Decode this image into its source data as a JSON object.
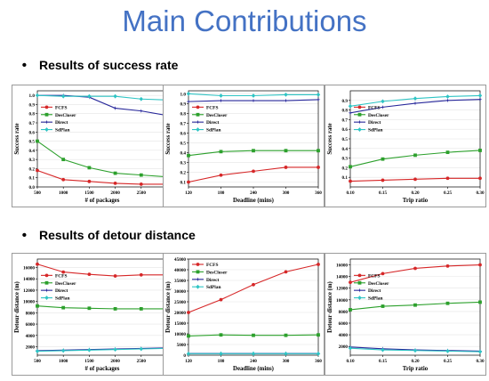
{
  "title": "Main Contributions",
  "sections": [
    {
      "bullet": "•",
      "label": "Results of success rate"
    },
    {
      "bullet": "•",
      "label": "Results of detour distance"
    }
  ],
  "colors": {
    "title": "#4472c4",
    "FCFS": "#d62728",
    "DesCloser": "#2ca02c",
    "Direct": "#27279a",
    "SdPlan": "#2ec4c4"
  },
  "chart_data": [
    {
      "type": "line",
      "xlabel": "# of packages",
      "ylabel": "Success rate",
      "x": [
        500,
        1000,
        1500,
        2000,
        2500,
        3000
      ],
      "xticks": [
        "500",
        "1000",
        "1500",
        "2000",
        "2500",
        "3000"
      ],
      "xlim": [
        500,
        3000
      ],
      "ylim": [
        0,
        1.05
      ],
      "yticks": [
        0.0,
        0.1,
        0.2,
        0.3,
        0.4,
        0.5,
        0.6,
        0.7,
        0.8,
        0.9,
        1.0
      ],
      "ytick_labels": [
        "0.0",
        "0.1",
        "0.2",
        "0.3",
        "0.4",
        "0.5",
        "0.6",
        "0.7",
        "0.8",
        "0.9",
        "1.0"
      ],
      "legend": "center-left",
      "series": [
        {
          "name": "FCFS",
          "values": [
            0.18,
            0.08,
            0.06,
            0.04,
            0.03,
            0.03
          ]
        },
        {
          "name": "DesCloser",
          "values": [
            0.5,
            0.3,
            0.21,
            0.15,
            0.13,
            0.11
          ]
        },
        {
          "name": "Direct",
          "values": [
            1.0,
            1.0,
            0.98,
            0.86,
            0.83,
            0.78
          ]
        },
        {
          "name": "SdPlan",
          "values": [
            1.0,
            0.99,
            0.99,
            0.99,
            0.96,
            0.95
          ]
        }
      ]
    },
    {
      "type": "line",
      "xlabel": "Deadline (mins)",
      "ylabel": "Success rate",
      "x": [
        120,
        180,
        240,
        300,
        360
      ],
      "xticks": [
        "120",
        "180",
        "240",
        "300",
        "360"
      ],
      "xlim": [
        120,
        360
      ],
      "ylim": [
        0.05,
        1.03
      ],
      "yticks": [
        0.1,
        0.2,
        0.3,
        0.4,
        0.5,
        0.6,
        0.7,
        0.8,
        0.9,
        1.0
      ],
      "ytick_labels": [
        "0.1",
        "0.2",
        "0.3",
        "0.4",
        "0.5",
        "0.6",
        "0.7",
        "0.8",
        "0.9",
        "1.0"
      ],
      "legend": "center-left",
      "series": [
        {
          "name": "FCFS",
          "values": [
            0.1,
            0.17,
            0.21,
            0.25,
            0.25
          ]
        },
        {
          "name": "DesCloser",
          "values": [
            0.37,
            0.41,
            0.42,
            0.42,
            0.42
          ]
        },
        {
          "name": "Direct",
          "values": [
            0.92,
            0.93,
            0.93,
            0.93,
            0.94
          ]
        },
        {
          "name": "SdPlan",
          "values": [
            1.0,
            0.98,
            0.98,
            0.99,
            0.99
          ]
        }
      ]
    },
    {
      "type": "line",
      "xlabel": "Trip ratio",
      "ylabel": "Success rate",
      "x": [
        0.1,
        0.15,
        0.2,
        0.25,
        0.3
      ],
      "xticks": [
        "0.10",
        "0.15",
        "0.20",
        "0.25",
        "0.30"
      ],
      "xlim": [
        0.1,
        0.3
      ],
      "ylim": [
        0.0,
        1.0
      ],
      "yticks": [
        0.1,
        0.2,
        0.3,
        0.4,
        0.5,
        0.6,
        0.7,
        0.8,
        0.9
      ],
      "ytick_labels": [
        "0.1",
        "0.2",
        "0.3",
        "0.4",
        "0.5",
        "0.6",
        "0.7",
        "0.8",
        "0.9"
      ],
      "legend": "center-left",
      "series": [
        {
          "name": "FCFS",
          "values": [
            0.06,
            0.07,
            0.08,
            0.09,
            0.09
          ]
        },
        {
          "name": "DesCloser",
          "values": [
            0.21,
            0.29,
            0.33,
            0.36,
            0.38
          ]
        },
        {
          "name": "Direct",
          "values": [
            0.77,
            0.83,
            0.87,
            0.9,
            0.91
          ]
        },
        {
          "name": "SdPlan",
          "values": [
            0.84,
            0.89,
            0.92,
            0.94,
            0.95
          ]
        }
      ]
    },
    {
      "type": "line",
      "xlabel": "# of packages",
      "ylabel": "Detour distance (m)",
      "x": [
        500,
        1000,
        1500,
        2000,
        2500,
        3000
      ],
      "xticks": [
        "500",
        "1000",
        "1500",
        "2000",
        "2500",
        "3000"
      ],
      "xlim": [
        500,
        3000
      ],
      "ylim": [
        500,
        17500
      ],
      "yticks": [
        2000,
        4000,
        6000,
        8000,
        10000,
        12000,
        14000,
        16000
      ],
      "ytick_labels": [
        "2000",
        "4000",
        "6000",
        "8000",
        "10000",
        "12000",
        "14000",
        "16000"
      ],
      "legend": "center-left",
      "series": [
        {
          "name": "FCFS",
          "values": [
            16600,
            15200,
            14800,
            14500,
            14700,
            14700
          ]
        },
        {
          "name": "DesCloser",
          "values": [
            9200,
            8900,
            8800,
            8700,
            8700,
            8700
          ]
        },
        {
          "name": "Direct",
          "values": [
            1300,
            1400,
            1500,
            1600,
            1700,
            1800
          ]
        },
        {
          "name": "SdPlan",
          "values": [
            1200,
            1300,
            1400,
            1500,
            1600,
            1700
          ]
        }
      ]
    },
    {
      "type": "line",
      "xlabel": "Deadline (mins)",
      "ylabel": "Detour distance (m)",
      "x": [
        120,
        180,
        240,
        300,
        360
      ],
      "xticks": [
        "120",
        "180",
        "240",
        "300",
        "360"
      ],
      "xlim": [
        120,
        360
      ],
      "ylim": [
        0,
        45000
      ],
      "yticks": [
        0,
        5000,
        10000,
        15000,
        20000,
        25000,
        30000,
        35000,
        40000,
        45000
      ],
      "ytick_labels": [
        "0",
        "5000",
        "10000",
        "15000",
        "20000",
        "25000",
        "30000",
        "35000",
        "40000",
        "45000"
      ],
      "legend": "top-left",
      "series": [
        {
          "name": "FCFS",
          "values": [
            20000,
            26000,
            33000,
            39000,
            42500
          ]
        },
        {
          "name": "DesCloser",
          "values": [
            9000,
            9500,
            9300,
            9300,
            9500
          ]
        },
        {
          "name": "Direct",
          "values": [
            800,
            800,
            800,
            800,
            800
          ]
        },
        {
          "name": "SdPlan",
          "values": [
            700,
            700,
            700,
            700,
            700
          ]
        }
      ]
    },
    {
      "type": "line",
      "xlabel": "Trip ratio",
      "ylabel": "Detour distance (m)",
      "x": [
        0.1,
        0.15,
        0.2,
        0.25,
        0.3
      ],
      "xticks": [
        "0.10",
        "0.15",
        "0.20",
        "0.25",
        "0.30"
      ],
      "xlim": [
        0.1,
        0.3
      ],
      "ylim": [
        500,
        17000
      ],
      "yticks": [
        2000,
        4000,
        6000,
        8000,
        10000,
        12000,
        14000,
        16000
      ],
      "ytick_labels": [
        "2000",
        "4000",
        "6000",
        "8000",
        "10000",
        "12000",
        "14000",
        "16000"
      ],
      "legend": "center-left",
      "series": [
        {
          "name": "FCFS",
          "values": [
            13000,
            14500,
            15400,
            15800,
            16000
          ]
        },
        {
          "name": "DesCloser",
          "values": [
            8300,
            8900,
            9100,
            9400,
            9600
          ]
        },
        {
          "name": "Direct",
          "values": [
            1900,
            1600,
            1400,
            1300,
            1200
          ]
        },
        {
          "name": "SdPlan",
          "values": [
            1700,
            1400,
            1300,
            1200,
            1100
          ]
        }
      ]
    }
  ]
}
